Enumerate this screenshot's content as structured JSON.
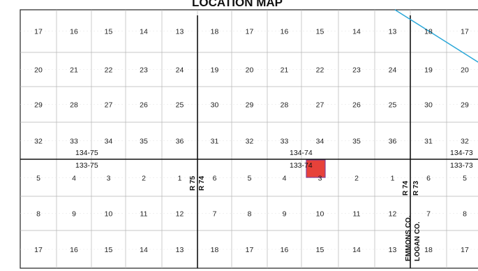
{
  "title": "LOCATION MAP",
  "colors": {
    "grid": "#b5b5b5",
    "major_line": "#111111",
    "frame": "#222222",
    "highlight_fill": "#e6312a",
    "highlight_stroke": "#7a2f8a",
    "road": "#2aa7d8"
  },
  "section_rows": [
    [
      "17",
      "16",
      "15",
      "14",
      "13",
      "18",
      "17",
      "16",
      "15",
      "14",
      "13",
      "18",
      "17"
    ],
    [
      "20",
      "21",
      "22",
      "23",
      "24",
      "19",
      "20",
      "21",
      "22",
      "23",
      "24",
      "19",
      "20"
    ],
    [
      "29",
      "28",
      "27",
      "26",
      "25",
      "30",
      "29",
      "28",
      "27",
      "26",
      "25",
      "30",
      "29"
    ],
    [
      "32",
      "33",
      "34",
      "35",
      "36",
      "31",
      "32",
      "33",
      "34",
      "35",
      "36",
      "31",
      "32"
    ],
    [
      "5",
      "4",
      "3",
      "2",
      "1",
      "6",
      "5",
      "4",
      "3",
      "2",
      "1",
      "6",
      "5"
    ],
    [
      "8",
      "9",
      "10",
      "11",
      "12",
      "7",
      "8",
      "9",
      "10",
      "11",
      "12",
      "7",
      "8"
    ],
    [
      "17",
      "16",
      "15",
      "14",
      "13",
      "18",
      "17",
      "16",
      "15",
      "14",
      "13",
      "18",
      "17"
    ]
  ],
  "township_labels": {
    "north": [
      "134-75",
      "134-74",
      "134-73"
    ],
    "south": [
      "133-75",
      "133-74",
      "133-73"
    ]
  },
  "range_labels": {
    "west_line": [
      "R 75",
      "R 74"
    ],
    "east_line": [
      "R 74",
      "R 73"
    ]
  },
  "county_labels": [
    "EMMONS CO.",
    "LOGAN CO."
  ],
  "highlighted_section": {
    "township": "133-74",
    "section": "3"
  }
}
